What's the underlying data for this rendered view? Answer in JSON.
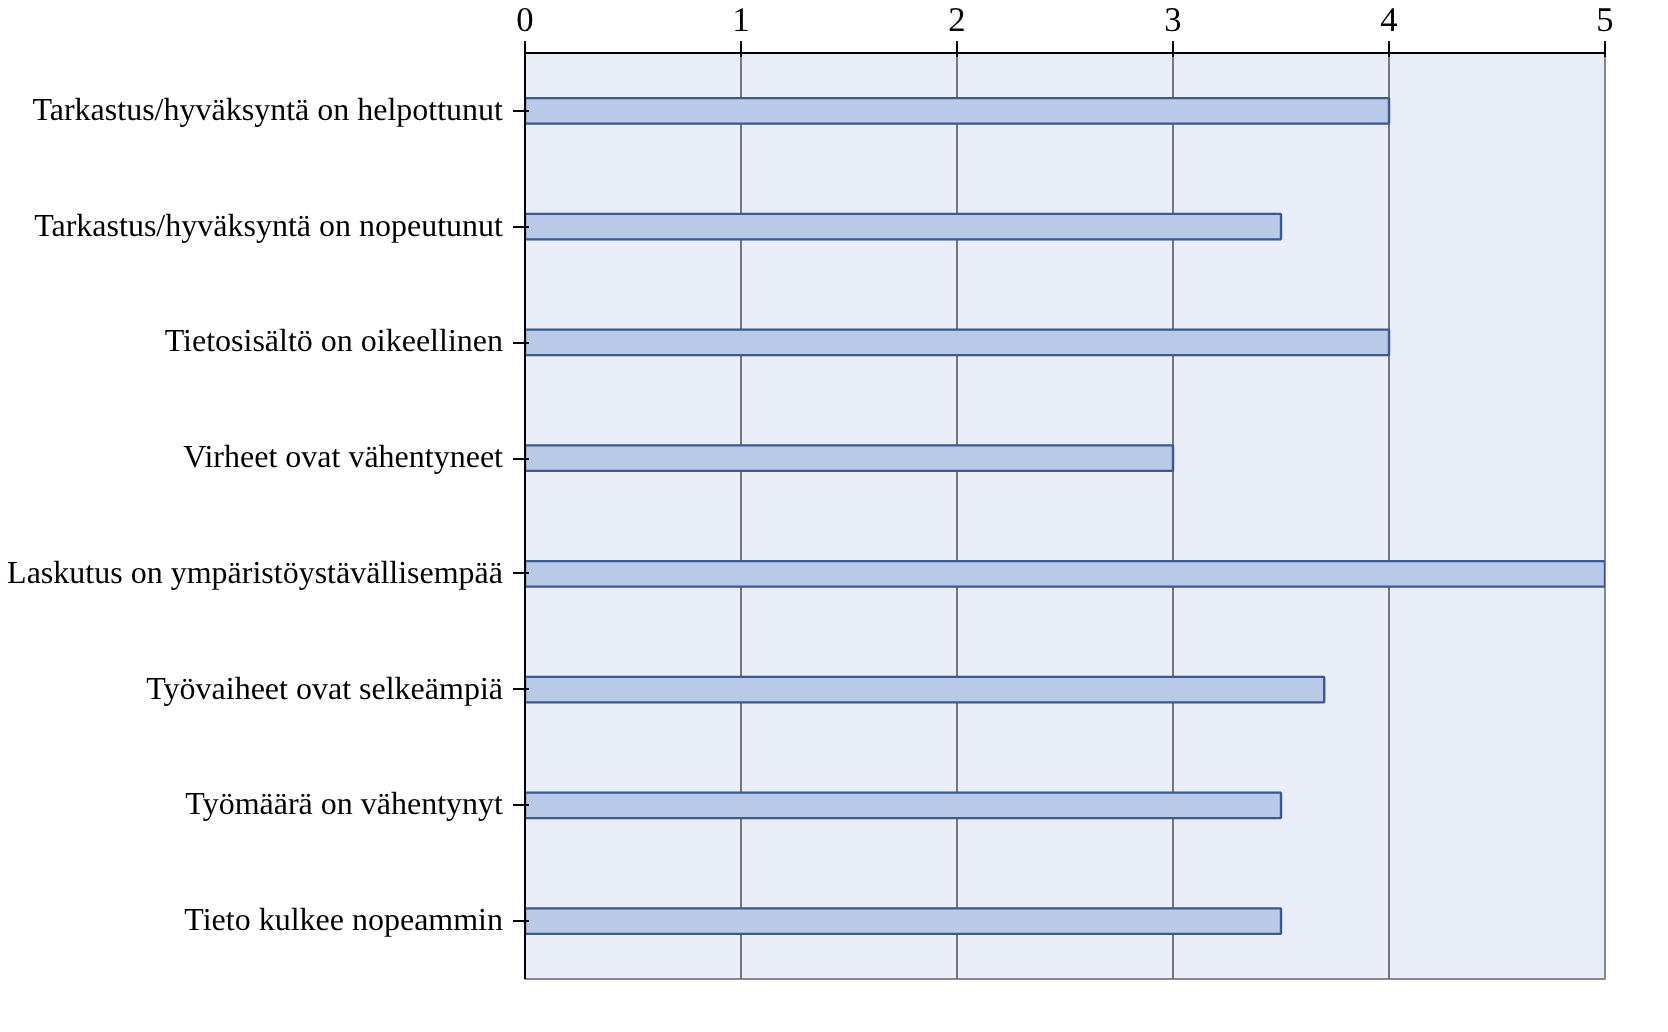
{
  "chart_data": {
    "type": "bar",
    "orientation": "horizontal",
    "categories": [
      "Tarkastus/hyväksyntä on helpottunut",
      "Tarkastus/hyväksyntä on nopeutunut",
      "Tietosisältö on oikeellinen",
      "Virheet ovat vähentyneet",
      "Laskutus on ympäristöystävällisempää",
      "Työvaiheet ovat selkeämpiä",
      "Työmäärä on vähentynyt",
      "Tieto kulkee nopeammin"
    ],
    "values": [
      4.0,
      3.5,
      4.0,
      3.0,
      5.0,
      3.7,
      3.5,
      3.5
    ],
    "color": "#b9c9e8",
    "xlim": [
      0,
      5
    ],
    "xticks": [
      0,
      1,
      2,
      3,
      4,
      5
    ],
    "grid": "x"
  }
}
